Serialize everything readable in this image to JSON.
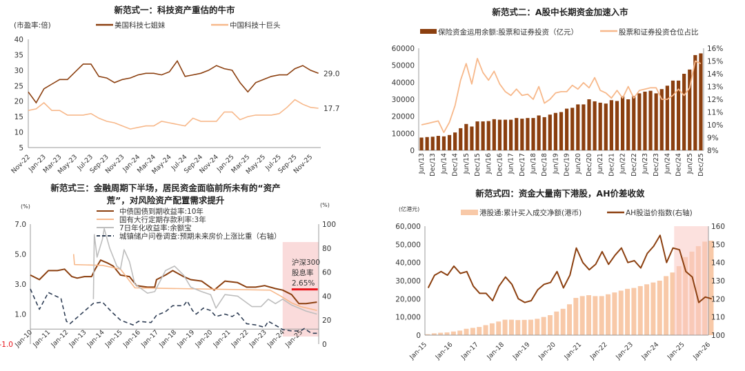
{
  "chart_data": [
    {
      "type": "line",
      "title": "新范式一：科技资产重估的牛市",
      "ylabel": "(市盈率:倍)",
      "ylim": [
        5,
        40
      ],
      "yticks": [
        "5",
        "10",
        "15",
        "20",
        "25",
        "30",
        "35",
        "40"
      ],
      "xticks": [
        "Nov-22",
        "Jan-23",
        "Mar-23",
        "May-23",
        "Jul-23",
        "Sep-23",
        "Nov-23",
        "Jan-24",
        "Mar-24",
        "May-24",
        "Jul-24",
        "Sep-24",
        "Nov-24",
        "Jan-25",
        "Mar-25",
        "May-25",
        "Jul-25",
        "Sep-25",
        "Nov-25"
      ],
      "x_months": [
        "Nov-22",
        "Dec-22",
        "Jan-23",
        "Feb-23",
        "Mar-23",
        "Apr-23",
        "May-23",
        "Jun-23",
        "Jul-23",
        "Aug-23",
        "Sep-23",
        "Oct-23",
        "Nov-23",
        "Dec-23",
        "Jan-24",
        "Feb-24",
        "Mar-24",
        "Apr-24",
        "May-24",
        "Jun-24",
        "Jul-24",
        "Aug-24",
        "Sep-24",
        "Oct-24",
        "Nov-24",
        "Dec-24",
        "Jan-25",
        "Feb-25",
        "Mar-25",
        "Apr-25",
        "May-25",
        "Jun-25",
        "Jul-25",
        "Aug-25",
        "Sep-25",
        "Oct-25",
        "Nov-25",
        "Dec-25"
      ],
      "legend_position": "top",
      "series": [
        {
          "name": "美国科技七姐妹",
          "color": "#8B3F0F",
          "end_label": "29.0",
          "values": [
            23,
            19.5,
            24,
            25.5,
            27,
            27,
            29.5,
            32,
            32,
            28,
            27.5,
            26,
            27,
            27.5,
            28.5,
            29,
            29,
            28.5,
            29.5,
            33,
            28,
            28.5,
            29,
            30,
            31.5,
            30.5,
            30,
            26,
            23,
            26,
            27,
            28,
            28.5,
            28.5,
            30.5,
            31.5,
            30,
            29.0
          ]
        },
        {
          "name": "中国科技十巨头",
          "color": "#F7B88A",
          "end_label": "17.7",
          "values": [
            17,
            17.5,
            19.5,
            17,
            17,
            15.5,
            15.5,
            15.5,
            16,
            14.5,
            13.5,
            13,
            12,
            11,
            11.5,
            12,
            12,
            13.5,
            13,
            12.5,
            12,
            14.5,
            13.5,
            13.5,
            13.5,
            16.5,
            16.5,
            14,
            15,
            15.5,
            15.5,
            15.5,
            16,
            18,
            20.5,
            19,
            18,
            17.7
          ]
        }
      ]
    },
    {
      "type": "bar+line",
      "title": "新范式二：A股中长期资金加速入市",
      "ylim": [
        0,
        60000
      ],
      "y2lim": [
        8,
        16
      ],
      "yticks": [
        "0",
        "10000",
        "20000",
        "30000",
        "40000",
        "50000",
        "60000"
      ],
      "y2ticks": [
        "8%",
        "9%",
        "10%",
        "11%",
        "12%",
        "13%",
        "14%",
        "15%",
        "16%"
      ],
      "xticks": [
        "Jun/13",
        "Dec/13",
        "Jun/14",
        "Dec/14",
        "Jun/15",
        "Dec/15",
        "Jun/16",
        "Dec/16",
        "Jun/17",
        "Dec/17",
        "Jun/18",
        "Dec/18",
        "Jun/19",
        "Dec/19",
        "Jun/20",
        "Dec/20",
        "Jun/21",
        "Dec/21",
        "Jun/22",
        "Dec/22",
        "Jun/23",
        "Dec/23",
        "Jun/24",
        "Dec/24",
        "Jun/25",
        "Dec/25"
      ],
      "legend_position": "top",
      "series": [
        {
          "name": "保险资金运用余额:股票和证券投资（亿元）",
          "color": "#8B3F0F",
          "axis": "left",
          "values": [
            7500,
            7800,
            8000,
            8500,
            8200,
            9000,
            10500,
            13000,
            15500,
            14000,
            17000,
            17000,
            17200,
            18300,
            18000,
            18000,
            18000,
            19000,
            18600,
            19000,
            19000,
            20500,
            19500,
            21000,
            22000,
            22500,
            24500,
            25000,
            27000,
            27000,
            30000,
            28800,
            28000,
            27500,
            29500,
            29000,
            31800,
            30000,
            32000,
            33500,
            34500,
            35000,
            33500,
            36000,
            38000,
            41000,
            41000,
            45000,
            47500,
            56000,
            57000
          ]
        },
        {
          "name": "股票和证券投资仓位占比",
          "color": "#F7B88A",
          "axis": "right",
          "unit": "%",
          "values": [
            10.0,
            10.1,
            10.2,
            10.3,
            9.4,
            10.2,
            11.5,
            13.5,
            14.8,
            13.2,
            15.2,
            14.1,
            13.5,
            14.2,
            13.2,
            12.6,
            12.3,
            12.8,
            12.3,
            12.4,
            12.0,
            13.0,
            11.7,
            12.0,
            12.5,
            12.6,
            12.6,
            13.1,
            12.8,
            13.3,
            12.9,
            13.7,
            12.7,
            12.5,
            12.1,
            12.7,
            12.1,
            13.0,
            12.1,
            12.7,
            12.8,
            12.9,
            12.9,
            12.0,
            12.0,
            12.3,
            12.8,
            12.3,
            12.9,
            15.0,
            14.8
          ]
        }
      ]
    },
    {
      "type": "line",
      "title_line1": "新范式三：金融周期下半场，居民资金面临前所未有的“资产",
      "title_line2": "荒”，对风险资产配置需求提升",
      "ylabel": "(%)",
      "y2label": "(%)",
      "ylim": [
        -1,
        7
      ],
      "y2lim": [
        0,
        100
      ],
      "yticks": [
        "-1.0",
        "1.0",
        "3.0",
        "5.0",
        "7.0"
      ],
      "y2ticks": [
        "0",
        "20",
        "40",
        "60",
        "80",
        "100"
      ],
      "xticks": [
        "Jan-10",
        "Jan-11",
        "Jan-12",
        "Jan-13",
        "Jan-14",
        "Jan-15",
        "Jan-16",
        "Jan-17",
        "Jan-18",
        "Jan-19",
        "Jan-20",
        "Jan-21",
        "Jan-22",
        "Jan-23",
        "Jan-24",
        "Jan-25"
      ],
      "highlight": {
        "from": 2024.0,
        "to": 2026.0,
        "color": "#F9D2D2"
      },
      "annotation": {
        "line1": "沪深300",
        "line2": "股息率",
        "line3": "2.65%",
        "value": 2.65,
        "from": 2024.5,
        "to": 2025.95,
        "color": "#E8141B"
      },
      "legend_position": "top",
      "series": [
        {
          "name": "中债国债到期收益率:10年",
          "color": "#8B3F0F",
          "axis": "left",
          "points": [
            [
              2010.0,
              3.6
            ],
            [
              2010.5,
              3.3
            ],
            [
              2011.0,
              3.9
            ],
            [
              2011.5,
              3.9
            ],
            [
              2011.9,
              4.0
            ],
            [
              2012.3,
              3.5
            ],
            [
              2012.6,
              3.4
            ],
            [
              2013.0,
              3.5
            ],
            [
              2013.4,
              3.5
            ],
            [
              2013.6,
              4.0
            ],
            [
              2013.9,
              4.6
            ],
            [
              2014.3,
              4.4
            ],
            [
              2014.6,
              4.2
            ],
            [
              2015.0,
              3.6
            ],
            [
              2015.5,
              3.5
            ],
            [
              2015.9,
              2.9
            ],
            [
              2016.5,
              2.8
            ],
            [
              2016.9,
              2.8
            ],
            [
              2017.0,
              3.3
            ],
            [
              2017.5,
              3.6
            ],
            [
              2017.9,
              3.9
            ],
            [
              2018.5,
              3.5
            ],
            [
              2018.9,
              3.3
            ],
            [
              2019.5,
              3.2
            ],
            [
              2020.2,
              2.6
            ],
            [
              2020.8,
              3.2
            ],
            [
              2021.5,
              3.1
            ],
            [
              2022.0,
              2.8
            ],
            [
              2022.5,
              2.8
            ],
            [
              2023.0,
              2.9
            ],
            [
              2023.6,
              2.7
            ],
            [
              2024.0,
              2.6
            ],
            [
              2024.5,
              2.3
            ],
            [
              2024.9,
              1.7
            ],
            [
              2025.3,
              1.7
            ],
            [
              2025.9,
              1.8
            ]
          ]
        },
        {
          "name": "国有大行定期存款利率:3年",
          "color": "#F7B88A",
          "axis": "left",
          "points": [
            [
              2012.4,
              5.0
            ],
            [
              2012.45,
              4.3
            ],
            [
              2014.0,
              4.25
            ],
            [
              2015.0,
              4.0
            ],
            [
              2015.8,
              2.75
            ],
            [
              2023.3,
              2.6
            ],
            [
              2023.9,
              2.2
            ],
            [
              2024.5,
              1.75
            ],
            [
              2025.0,
              1.5
            ],
            [
              2025.9,
              1.25
            ]
          ]
        },
        {
          "name": "7日年化收益率:余额宝",
          "color": "#BDBDBD",
          "axis": "left",
          "points": [
            [
              2013.5,
              2.0
            ],
            [
              2013.55,
              6.3
            ],
            [
              2013.7,
              4.8
            ],
            [
              2014.0,
              6.0
            ],
            [
              2014.1,
              6.7
            ],
            [
              2014.4,
              5.4
            ],
            [
              2014.8,
              4.2
            ],
            [
              2015.0,
              4.0
            ],
            [
              2015.2,
              5.3
            ],
            [
              2015.5,
              4.5
            ],
            [
              2015.8,
              3.0
            ],
            [
              2016.5,
              2.4
            ],
            [
              2016.9,
              2.5
            ],
            [
              2017.5,
              3.9
            ],
            [
              2018.0,
              4.2
            ],
            [
              2018.5,
              3.6
            ],
            [
              2018.9,
              2.8
            ],
            [
              2019.5,
              2.5
            ],
            [
              2020.0,
              2.3
            ],
            [
              2020.3,
              1.4
            ],
            [
              2020.8,
              2.3
            ],
            [
              2021.5,
              2.2
            ],
            [
              2022.3,
              1.5
            ],
            [
              2022.8,
              1.5
            ],
            [
              2023.2,
              2.0
            ],
            [
              2023.6,
              1.7
            ],
            [
              2024.0,
              2.0
            ],
            [
              2024.5,
              1.6
            ],
            [
              2024.9,
              1.4
            ],
            [
              2025.3,
              1.2
            ],
            [
              2025.9,
              1.0
            ]
          ]
        },
        {
          "name": "城镇储户问卷调查:预期未来房价上涨比重（右轴）",
          "color": "#2F3E55",
          "axis": "right",
          "dashed": true,
          "points": [
            [
              2010.0,
              46
            ],
            [
              2010.5,
              29
            ],
            [
              2011.0,
              43
            ],
            [
              2011.7,
              38
            ],
            [
              2012.0,
              19
            ],
            [
              2012.2,
              17
            ],
            [
              2013.5,
              34
            ],
            [
              2014.0,
              35
            ],
            [
              2014.5,
              27
            ],
            [
              2015.0,
              20
            ],
            [
              2015.7,
              16
            ],
            [
              2016.0,
              19
            ],
            [
              2016.7,
              18
            ],
            [
              2017.0,
              24
            ],
            [
              2017.5,
              27
            ],
            [
              2017.9,
              32
            ],
            [
              2018.5,
              32
            ],
            [
              2018.7,
              36
            ],
            [
              2019.0,
              28
            ],
            [
              2019.2,
              25
            ],
            [
              2019.6,
              30
            ],
            [
              2020.0,
              28
            ],
            [
              2020.3,
              23
            ],
            [
              2020.8,
              25
            ],
            [
              2021.2,
              23
            ],
            [
              2021.5,
              26
            ],
            [
              2022.0,
              17
            ],
            [
              2022.5,
              16
            ],
            [
              2023.0,
              14
            ],
            [
              2023.2,
              19
            ],
            [
              2023.8,
              14
            ],
            [
              2024.0,
              12
            ],
            [
              2024.5,
              11
            ],
            [
              2025.0,
              11
            ],
            [
              2025.2,
              13
            ],
            [
              2025.6,
              9
            ],
            [
              2025.9,
              9
            ]
          ]
        }
      ]
    },
    {
      "type": "bar+line",
      "title": "新范式四：资金大量南下港股，AH价差收敛",
      "ylabel": "(亿港元)",
      "ylim": [
        0,
        60000
      ],
      "y2lim": [
        100,
        160
      ],
      "yticks": [
        "0",
        "10,000",
        "20,000",
        "30,000",
        "40,000",
        "50,000",
        "60,000"
      ],
      "y2ticks": [
        "100",
        "110",
        "120",
        "130",
        "140",
        "150",
        "160"
      ],
      "xticks": [
        "Jan-15",
        "Jan-16",
        "Jan-17",
        "Jan-18",
        "Jan-19",
        "Jan-20",
        "Jan-21",
        "Jan-22",
        "Jan-23",
        "Jan-24",
        "Jan-25",
        "Jan-26"
      ],
      "highlight": {
        "from": 2024.67,
        "to": 2026.0,
        "color": "#F9C9C2"
      },
      "legend_position": "top",
      "series": [
        {
          "name": "港股通:累计买入成交净额(港币)",
          "color": "#F8C9A8",
          "axis": "left",
          "x_start": 2015.0,
          "x_step": 0.25,
          "values": [
            500,
            1000,
            1300,
            1500,
            2000,
            2500,
            3500,
            4000,
            4500,
            5500,
            6500,
            7500,
            8500,
            8500,
            8300,
            8400,
            8500,
            9000,
            10000,
            11000,
            13000,
            14500,
            17000,
            20500,
            21500,
            22000,
            21500,
            21500,
            22500,
            23500,
            24500,
            25500,
            26000,
            27000,
            28000,
            29000,
            30000,
            32500,
            34500,
            38000,
            43000,
            46000,
            49000,
            51500,
            52000
          ]
        },
        {
          "name": "AH股溢价指数(右轴)",
          "color": "#8B3F0F",
          "axis": "right",
          "x_start": 2015.0,
          "x_step": 0.25,
          "values": [
            126,
            133,
            135,
            133,
            138,
            134,
            135,
            127,
            123,
            123,
            119,
            127,
            132,
            128,
            120,
            118,
            119,
            125,
            128,
            129,
            135,
            126,
            133,
            148,
            140,
            136,
            139,
            146,
            139,
            144,
            148,
            140,
            141,
            137,
            145,
            149,
            155,
            140,
            148,
            147,
            135,
            132,
            118,
            121,
            120
          ]
        }
      ]
    }
  ]
}
